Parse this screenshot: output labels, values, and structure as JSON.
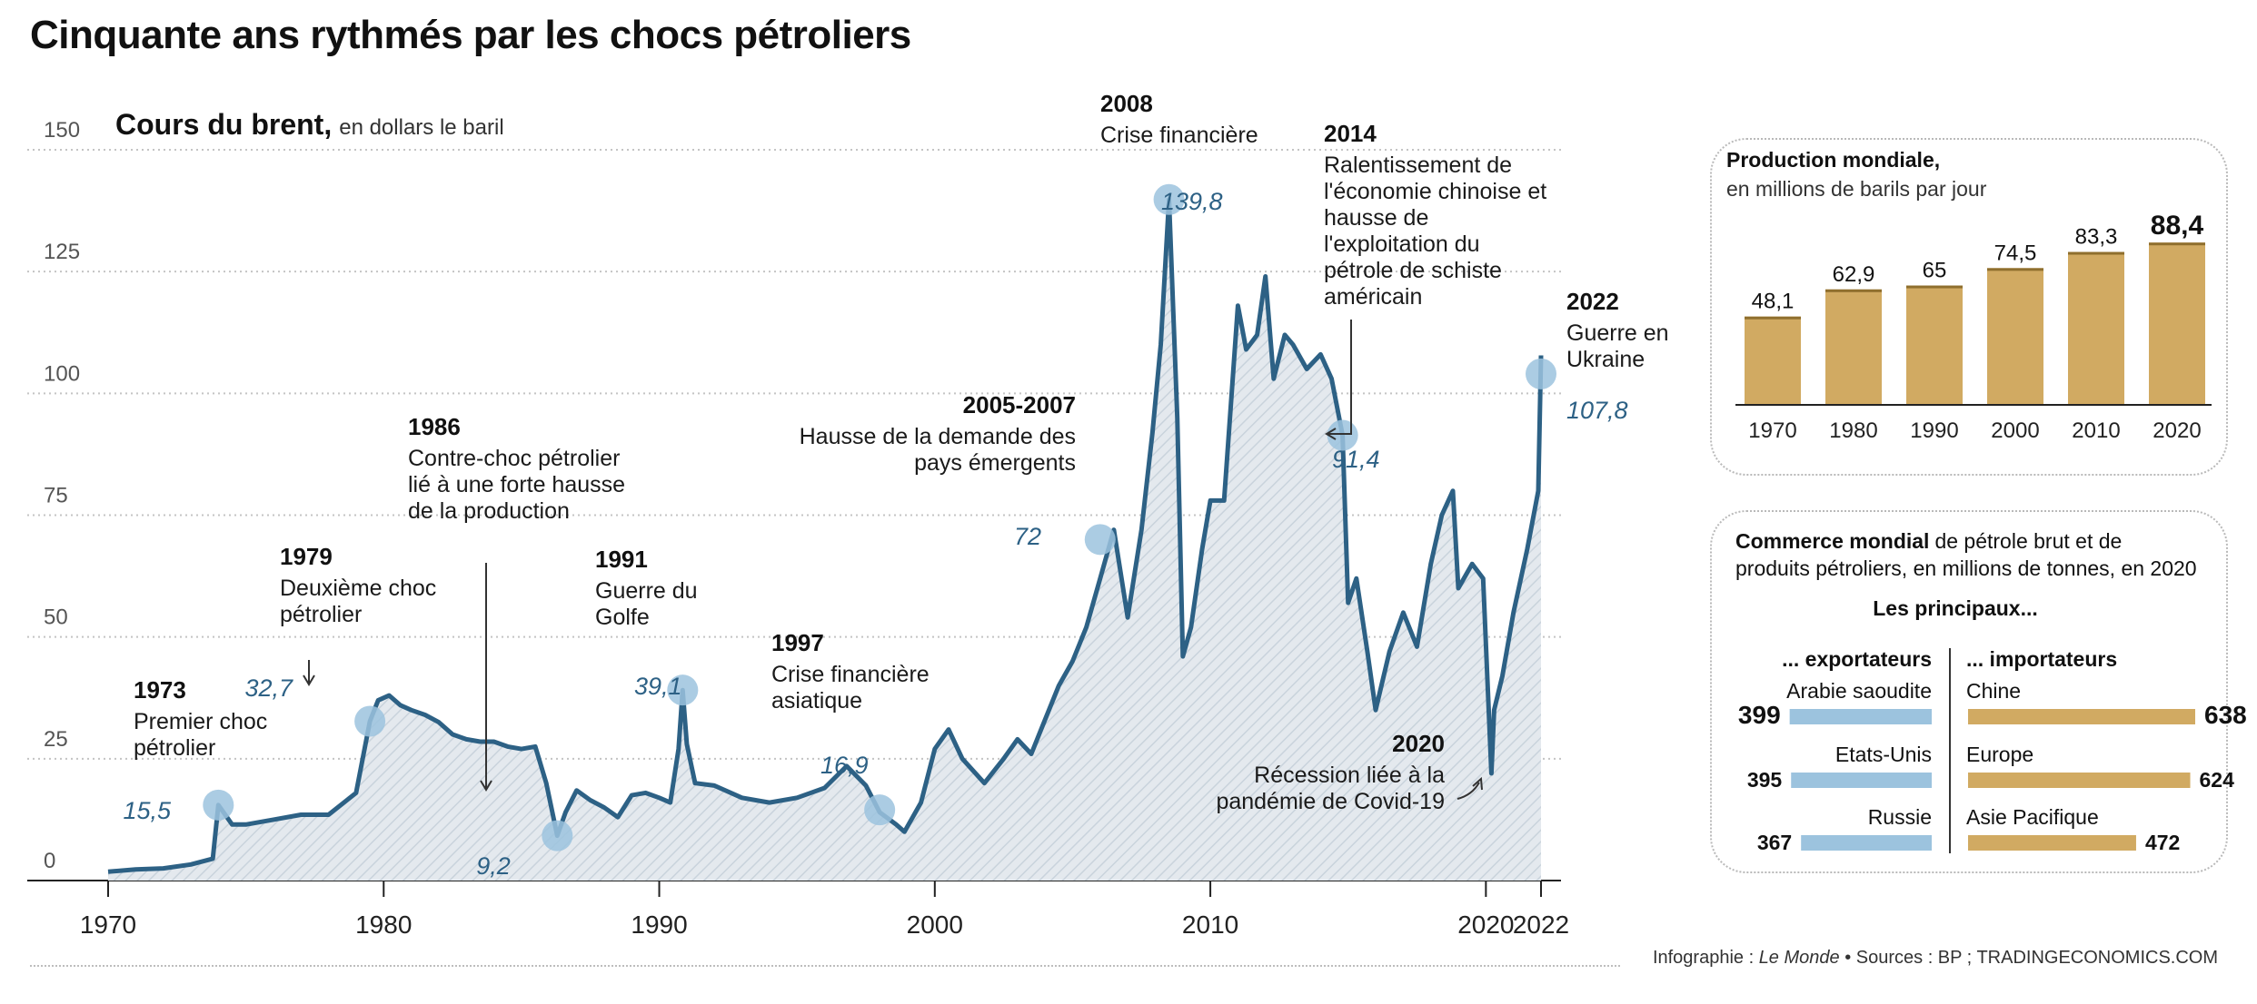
{
  "title": "Cinquante ans rythmés par les chocs pétroliers",
  "chart_data": [
    {
      "type": "line",
      "title": "Cours du brent,",
      "subtitle": "en dollars le baril",
      "ylim": [
        0,
        150
      ],
      "xlim": [
        1970,
        2022
      ],
      "yticks": [
        0,
        25,
        50,
        75,
        100,
        125,
        150
      ],
      "xticks": [
        "1970",
        "1980",
        "1990",
        "2000",
        "2010",
        "2020",
        "2022"
      ],
      "grid": true,
      "series": [
        {
          "x": [
            1970,
            1971,
            1972,
            1973,
            1973.8,
            1974.0,
            1974.5,
            1975,
            1976,
            1977,
            1978,
            1979,
            1979.5,
            1979.8,
            1980.2,
            1980.6,
            1981.0,
            1981.5,
            1982,
            1982.5,
            1983,
            1983.5,
            1984,
            1984.5,
            1985,
            1985.5,
            1985.9,
            1986.3,
            1986.6,
            1987,
            1987.5,
            1988,
            1988.5,
            1989,
            1989.5,
            1990,
            1990.4,
            1990.7,
            1990.85,
            1991.0,
            1991.3,
            1992,
            1993,
            1994,
            1995,
            1996,
            1996.8,
            1997.5,
            1998,
            1998.6,
            1998.9,
            1999.5,
            2000,
            2000.5,
            2001,
            2001.8,
            2002.5,
            2003,
            2003.5,
            2004,
            2004.5,
            2005,
            2005.5,
            2006,
            2006.5,
            2007,
            2007.5,
            2007.9,
            2008.2,
            2008.5,
            2008.8,
            2009.0,
            2009.3,
            2009.7,
            2010,
            2010.5,
            2011,
            2011.3,
            2011.7,
            2012,
            2012.3,
            2012.7,
            2013,
            2013.5,
            2014,
            2014.4,
            2014.8,
            2015.0,
            2015.3,
            2015.7,
            2016.0,
            2016.5,
            2017,
            2017.5,
            2018,
            2018.4,
            2018.8,
            2019,
            2019.5,
            2019.9,
            2020.2,
            2020.3,
            2020.6,
            2021,
            2021.5,
            2021.9,
            2022.0
          ],
          "y": [
            1.8,
            2.3,
            2.5,
            3.3,
            4.5,
            15.5,
            11.5,
            11.5,
            12.5,
            13.5,
            13.5,
            18,
            32.7,
            37,
            38,
            36,
            35,
            34,
            32.5,
            30,
            29,
            28.5,
            28.5,
            27.5,
            27,
            27.5,
            20,
            9.2,
            14,
            18.5,
            16.5,
            15,
            13,
            17.5,
            18,
            17,
            16,
            27,
            39.1,
            28,
            20,
            19.5,
            17,
            16,
            17,
            19,
            23.5,
            19.5,
            14,
            11.5,
            10,
            16,
            27,
            31,
            25,
            20,
            25,
            29,
            26,
            33,
            40,
            45,
            52,
            62,
            72,
            54,
            72,
            92,
            110,
            139.8,
            95,
            46,
            52,
            68,
            78,
            78,
            118,
            109,
            112,
            124,
            103,
            112,
            110,
            105,
            108,
            103,
            91.4,
            57,
            62,
            47,
            35,
            47,
            55,
            48,
            65,
            75,
            80,
            60,
            65,
            62,
            22,
            35,
            42,
            55,
            68,
            80,
            107.8
          ]
        }
      ],
      "annotations": [
        {
          "year": "1973",
          "label": "Premier choc pétrolier",
          "value": "15,5"
        },
        {
          "year": "1979",
          "label": "Deuxième choc pétrolier",
          "value": "32,7"
        },
        {
          "year": "1986",
          "label": "Contre-choc pétrolier lié à une forte hausse de la production",
          "value": "9,2"
        },
        {
          "year": "1991",
          "label": "Guerre du Golfe",
          "value": "39,1"
        },
        {
          "year": "1997",
          "label": "Crise financière asiatique",
          "value": "16,9"
        },
        {
          "year": "2005-2007",
          "label": "Hausse de la demande des pays émergents",
          "value": "72"
        },
        {
          "year": "2008",
          "label": "Crise financière",
          "value": "139,8"
        },
        {
          "year": "2014",
          "label": "Ralentissement de l'économie chinoise et hausse de l'exploitation du pétrole de schiste américain",
          "value": "91,4"
        },
        {
          "year": "2020",
          "label": "Récession liée à la pandémie de Covid-19",
          "value": ""
        },
        {
          "year": "2022",
          "label": "Guerre en Ukraine",
          "value": "107,8"
        }
      ],
      "colors": {
        "line": "#2d6185",
        "marker": "#9cc3de",
        "value_text": "#2d6185",
        "area": "#dde3e8"
      }
    },
    {
      "type": "bar",
      "title": "Production mondiale,",
      "subtitle": "en millions de barils par jour",
      "categories": [
        "1970",
        "1980",
        "1990",
        "2000",
        "2010",
        "2020"
      ],
      "values": [
        48.1,
        62.9,
        65,
        74.5,
        83.3,
        88.4
      ],
      "value_labels": [
        "48,1",
        "62,9",
        "65",
        "74,5",
        "83,3",
        "88,4"
      ],
      "ylim": [
        0,
        90
      ],
      "colors": {
        "bar": "#d1aa62",
        "bar_top": "#8f6f2e"
      }
    },
    {
      "type": "bar",
      "title": "Commerce mondial",
      "subtitle": "de pétrole brut et de produits pétroliers, en millions de tonnes, en 2020",
      "heading": "Les principaux...",
      "series": [
        {
          "name": "... exportateurs",
          "categories": [
            "Arabie saoudite",
            "Etats-Unis",
            "Russie"
          ],
          "values": [
            399,
            395,
            367
          ],
          "color": "#9cc3de"
        },
        {
          "name": "... importateurs",
          "categories": [
            "Chine",
            "Europe",
            "Asie Pacifique"
          ],
          "values": [
            638,
            624,
            472
          ],
          "color": "#d1aa62"
        }
      ]
    }
  ],
  "footer": {
    "credit_prefix": "Infographie : ",
    "credit_name": "Le Monde",
    "sources": " • Sources : BP ; TRADINGECONOMICS.COM"
  }
}
